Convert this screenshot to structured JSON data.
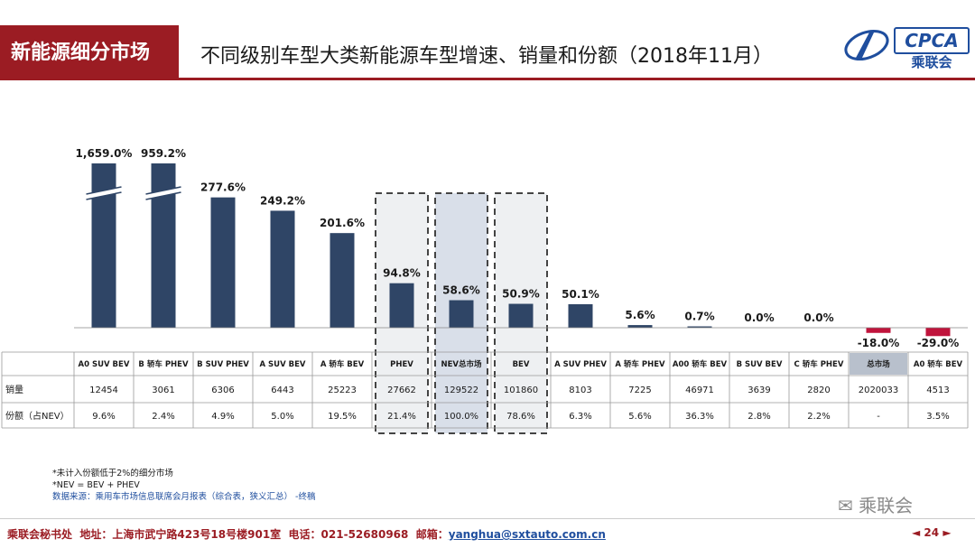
{
  "header": {
    "section_label": "新能源细分市场",
    "title": "不同级别车型大类新能源车型增速、销量和份额（2018年11月）",
    "logo_text": "CPCA",
    "logo_sub": "乘联会",
    "logo_mark": "CPCA"
  },
  "chart_data": {
    "type": "bar",
    "title": "不同级别车型大类新能源车型增速、销量和份额（2018年11月）",
    "categories": [
      "A0 SUV BEV",
      "B 轿车 PHEV",
      "B SUV PHEV",
      "A SUV BEV",
      "A 轿车 BEV",
      "PHEV",
      "NEV总市场",
      "BEV",
      "A SUV PHEV",
      "A 轿车 PHEV",
      "A00 轿车 BEV",
      "B SUV BEV",
      "C 轿车 PHEV",
      "总市场",
      "A0 轿车 BEV"
    ],
    "growth": [
      1659.0,
      959.2,
      277.6,
      249.2,
      201.6,
      94.8,
      58.6,
      50.9,
      50.1,
      5.6,
      0.7,
      0.0,
      0.0,
      -18.0,
      -29.0
    ],
    "growth_labels": [
      "1,659.0%",
      "959.2%",
      "277.6%",
      "249.2%",
      "201.6%",
      "94.8%",
      "58.6%",
      "50.9%",
      "50.1%",
      "5.6%",
      "0.7%",
      "0.0%",
      "0.0%",
      "-18.0%",
      "-29.0%"
    ],
    "broken_axis": [
      true,
      true,
      false,
      false,
      false,
      false,
      false,
      false,
      false,
      false,
      false,
      false,
      false,
      false,
      false
    ],
    "highlighted": [
      false,
      false,
      false,
      false,
      false,
      true,
      true,
      true,
      false,
      false,
      false,
      false,
      false,
      false,
      false
    ],
    "ylim": [
      -40,
      350
    ],
    "bar_color": "#2f4566",
    "negative_color": "#c0143c",
    "table": {
      "rows": [
        {
          "label": "销量",
          "values": [
            "12454",
            "3061",
            "6306",
            "6443",
            "25223",
            "27662",
            "129522",
            "101860",
            "8103",
            "7225",
            "46971",
            "3639",
            "2820",
            "2020033",
            "4513"
          ]
        },
        {
          "label": "份额（占NEV）",
          "values": [
            "9.6%",
            "2.4%",
            "4.9%",
            "5.0%",
            "19.5%",
            "21.4%",
            "100.0%",
            "78.6%",
            "6.3%",
            "5.6%",
            "36.3%",
            "2.8%",
            "2.2%",
            "-",
            "3.5%"
          ]
        }
      ]
    }
  },
  "notes": {
    "line1": "*未计入份额低于2%的细分市场",
    "line2": "*NEV = BEV + PHEV",
    "line3": "数据来源：乘用车市场信息联席会月报表（综合表，狭义汇总）  -终稿"
  },
  "footer": {
    "org": "乘联会秘书处",
    "address": "地址：上海市武宁路423号18号楼901室",
    "phone": "电话：021-52680968",
    "email_label": "邮箱：",
    "email": "yanghua@sxtauto.com.cn",
    "page_prev": "◄",
    "page_num": "24",
    "page_next": "►",
    "watermark": "乘联会"
  }
}
